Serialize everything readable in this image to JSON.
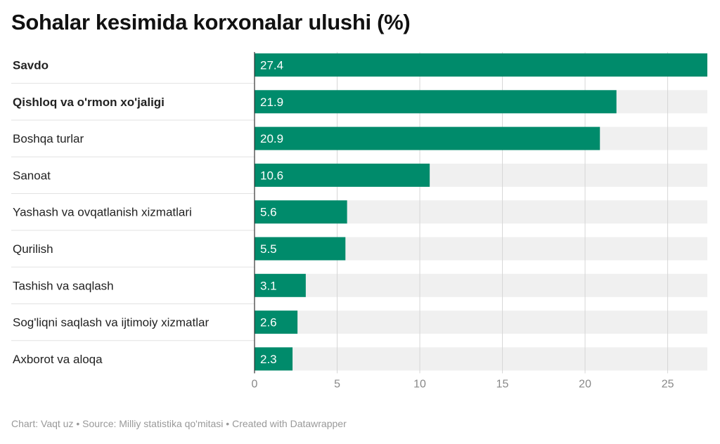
{
  "header": {
    "title": "Sohalar kesimida korxonalar ulushi (%)"
  },
  "chart_data": {
    "type": "bar",
    "orientation": "horizontal",
    "categories": [
      "Savdo",
      "Qishloq va o'rmon xo'jaligi",
      "Boshqa turlar",
      "Sanoat",
      "Yashash va ovqatlanish xizmatlari",
      "Qurilish",
      "Tashish va saqlash",
      "Sog'liqni saqlash va ijtimoiy xizmatlar",
      "Axborot va aloqa"
    ],
    "bold_categories": [
      0,
      1
    ],
    "values": [
      27.4,
      21.9,
      20.9,
      10.6,
      5.6,
      5.5,
      3.1,
      2.6,
      2.3
    ],
    "value_labels": [
      "27.4",
      "21.9",
      "20.9",
      "10.6",
      "5.6",
      "5.5",
      "3.1",
      "2.6",
      "2.3"
    ],
    "xlim": [
      0,
      27.4
    ],
    "xticks": [
      0,
      5,
      10,
      15,
      20,
      25
    ],
    "grid": true,
    "bar_color": "#008b6b",
    "background_bar_color": "#f0f0f0",
    "legend": "none"
  },
  "footer": {
    "text": "Chart: Vaqt uz • Source: Milliy statistika qo'mitasi  • Created with Datawrapper"
  }
}
